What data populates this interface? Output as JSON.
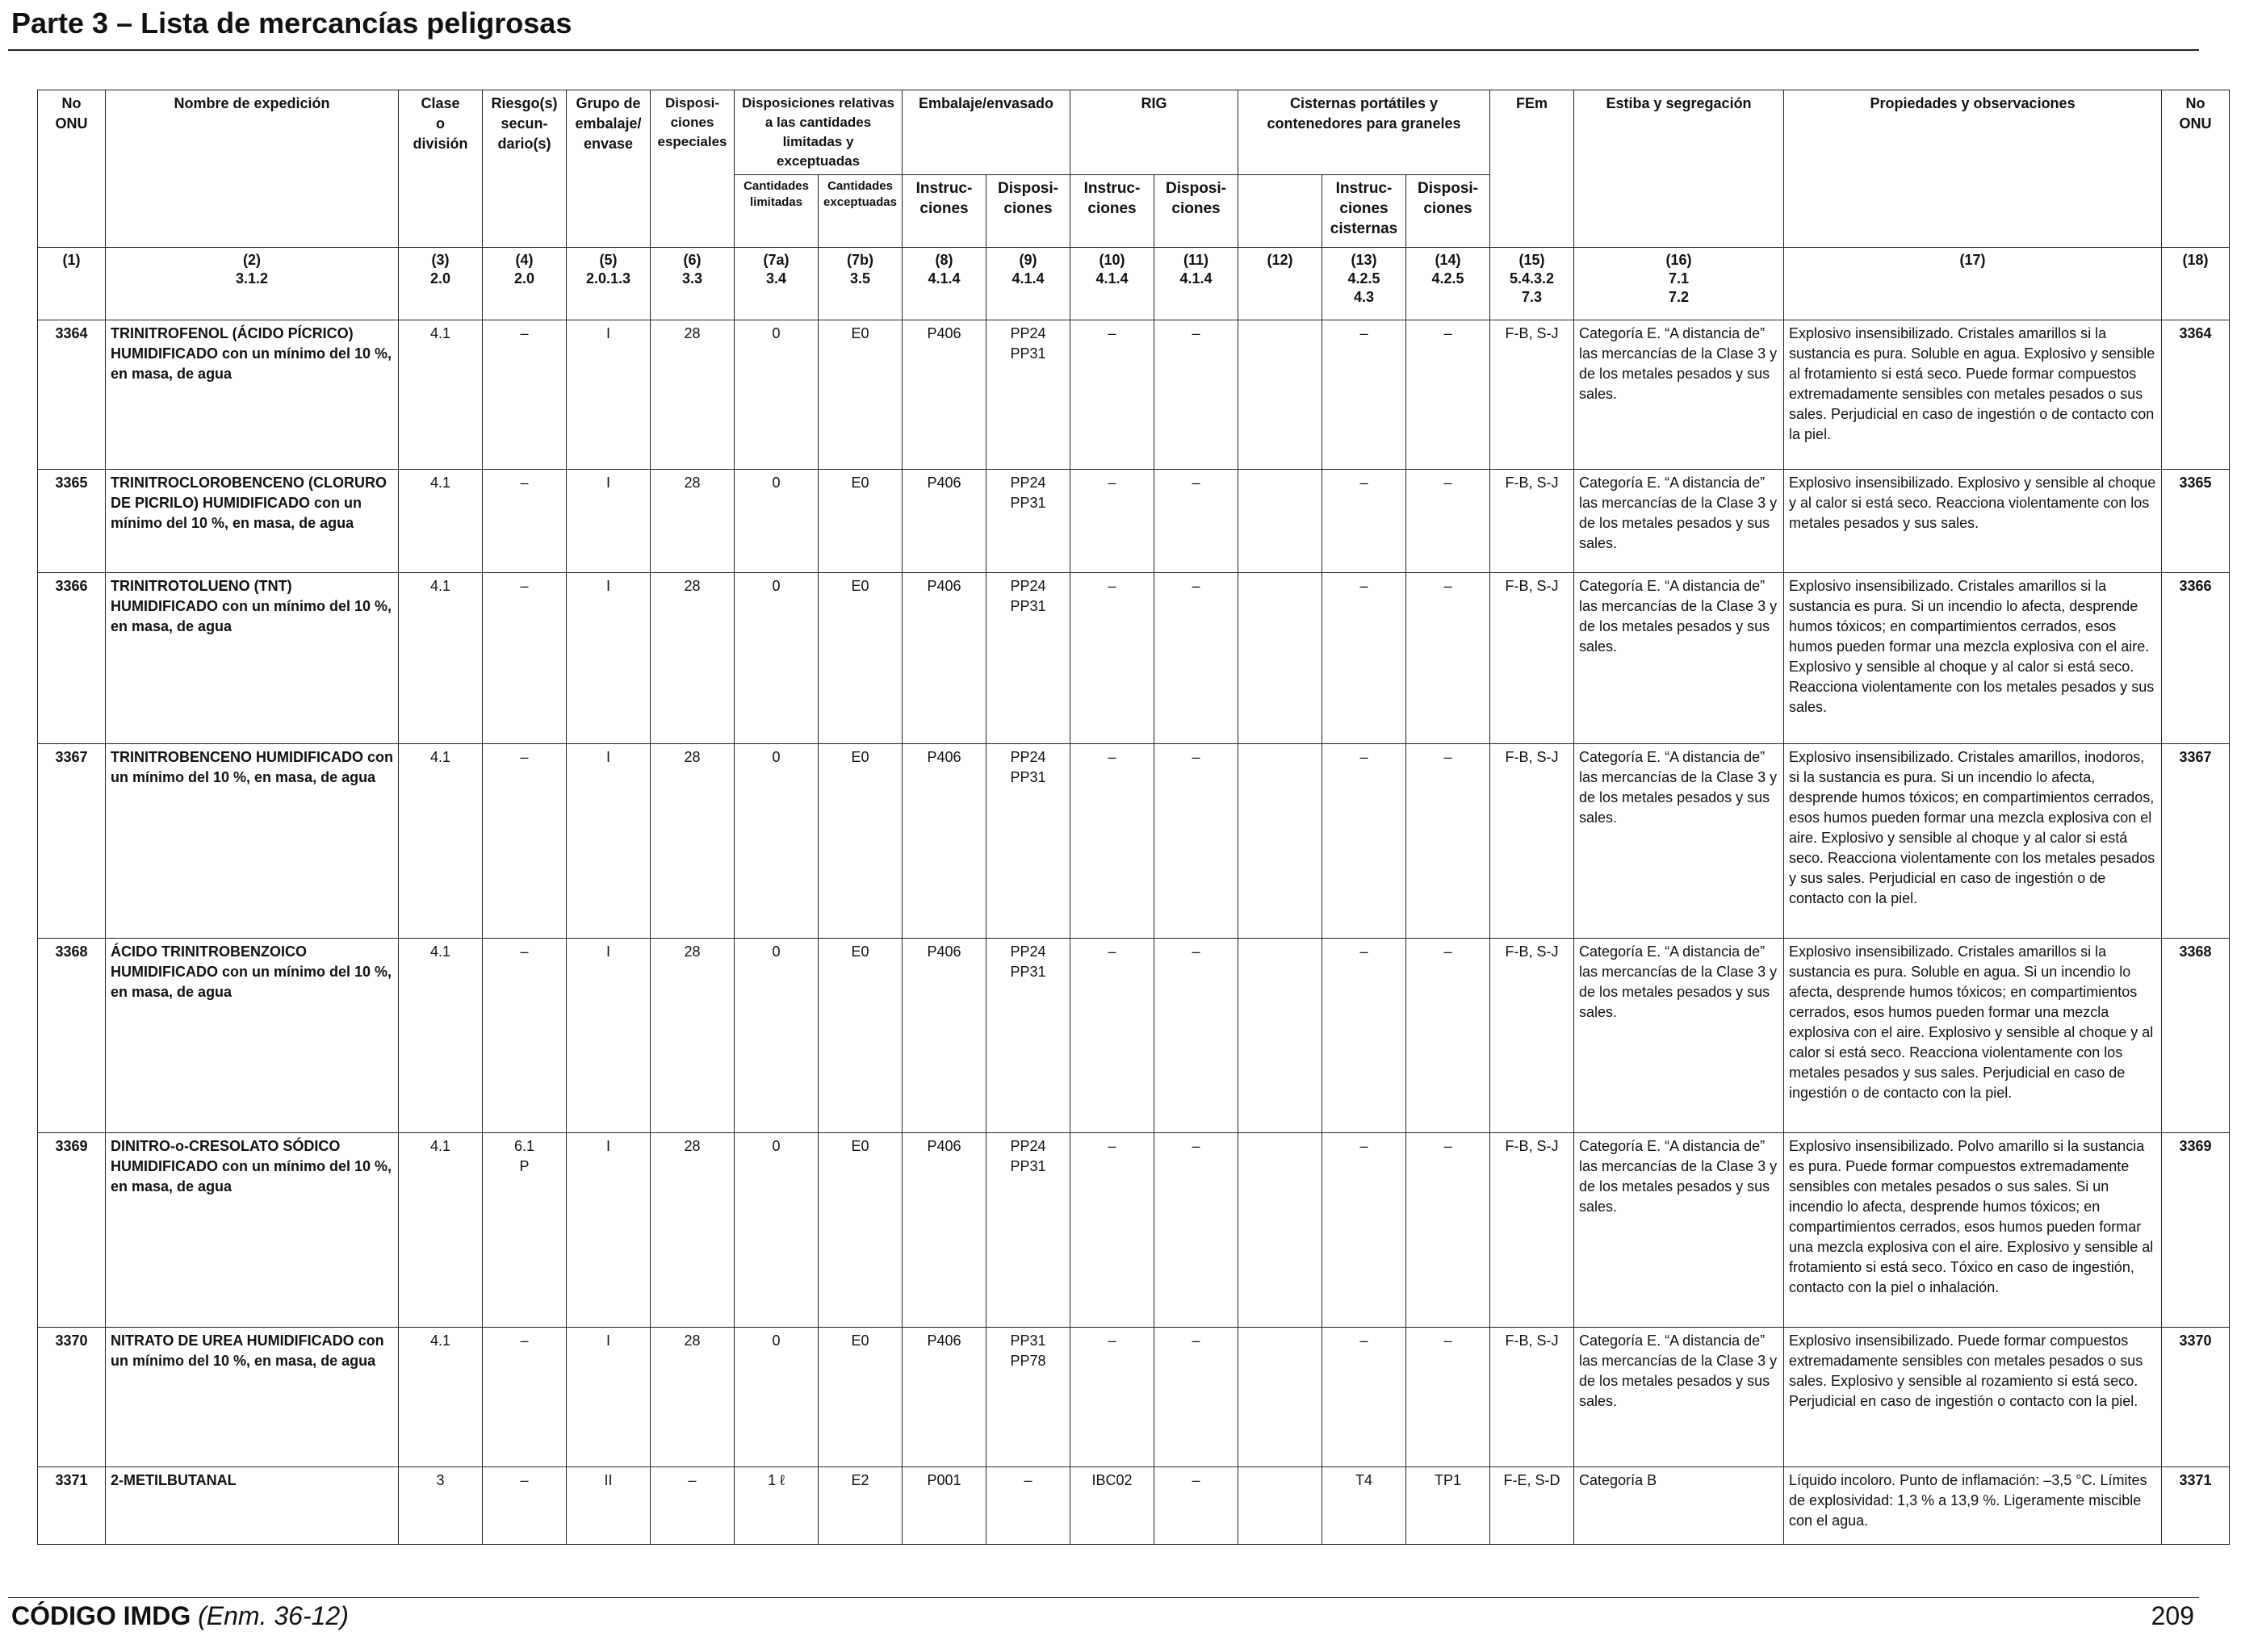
{
  "page": {
    "title": "Parte 3 – Lista de mercancías peligrosas",
    "footer_code": "CÓDIGO IMDG",
    "footer_edition": "(Enm. 36-12)",
    "page_number": "209"
  },
  "headers": {
    "un_no": "No\nONU",
    "shipping_name": "Nombre de expedición",
    "class": "Clase\no\ndivisión",
    "sub_risk": "Riesgo(s)\nsecun-\ndario(s)",
    "packing_group": "Grupo de\nembalaje/\nenvase",
    "special_provisions": "Disposi-\nciones\nespeciales",
    "limited_excepted": "Disposiciones relativas\na las cantidades\nlimitadas y exceptuadas",
    "limited": "Cantidades\nlimitadas",
    "excepted": "Cantidades\nexceptuadas",
    "packaging": "Embalaje/envasado",
    "pkg_instr": "Instruc-\nciones",
    "pkg_prov": "Disposi-\nciones",
    "ibc": "RIG",
    "ibc_instr": "Instruc-\nciones",
    "ibc_prov": "Disposi-\nciones",
    "tanks": "Cisternas portátiles y\ncontenedores para graneles",
    "tank_instr": "Instruc-\nciones\ncisternas",
    "tank_prov": "Disposi-\nciones",
    "ems": "FEm",
    "stowage": "Estiba y segregación",
    "properties": "Propiedades y observaciones",
    "un_no_right": "No\nONU"
  },
  "ref_row": [
    "(1)",
    "(2)\n3.1.2",
    "(3)\n2.0",
    "(4)\n2.0",
    "(5)\n2.0.1.3",
    "(6)\n3.3",
    "(7a)\n3.4",
    "(7b)\n3.5",
    "(8)\n4.1.4",
    "(9)\n4.1.4",
    "(10)\n4.1.4",
    "(11)\n4.1.4",
    "(12)",
    "(13)\n4.2.5\n4.3",
    "(14)\n4.2.5",
    "(15)\n5.4.3.2\n7.3",
    "(16)\n7.1\n7.2",
    "(17)",
    "(18)"
  ],
  "rows": [
    {
      "un": "3364",
      "name_bold": "TRINITROFENOL (ÁCIDO PÍCRICO) HUMIDIFICADO",
      "name_rest": " con un mínimo del 10 %, en masa, de agua",
      "class": "4.1",
      "sub": "–",
      "pg": "I",
      "sp": "28",
      "lq": "0",
      "eq": "E0",
      "pkg": "P406",
      "pkgp": "PP24\nPP31",
      "ibc": "–",
      "ibcp": "–",
      "c12": "",
      "tank": "–",
      "tankp": "–",
      "ems": "F-B, S-J",
      "stow": "Categoría E. “A distancia de” las mercancías de la Clase 3 y de los metales pesados y sus sales.",
      "props": "Explosivo insensibilizado. Cristales amarillos si la sustancia es pura. Soluble en agua. Explosivo y sensible al frotamiento si está seco. Puede formar compuestos extremadamente sensibles con metales pesados o sus sales. Perjudicial en caso de ingestión o de contacto con la piel.",
      "un2": "3364"
    },
    {
      "un": "3365",
      "name_bold": "TRINITROCLOROBENCENO (CLORURO DE PICRILO) HUMIDIFICADO",
      "name_rest": " con un mínimo del 10 %, en masa, de agua",
      "class": "4.1",
      "sub": "–",
      "pg": "I",
      "sp": "28",
      "lq": "0",
      "eq": "E0",
      "pkg": "P406",
      "pkgp": "PP24\nPP31",
      "ibc": "–",
      "ibcp": "–",
      "c12": "",
      "tank": "–",
      "tankp": "–",
      "ems": "F-B, S-J",
      "stow": "Categoría E. “A distancia de” las mercancías de la Clase 3 y de los metales pesados y sus sales.",
      "props": "Explosivo insensibilizado. Explosivo y sensible al choque y al calor si está seco. Reacciona violentamente con los metales pesados y sus sales.",
      "un2": "3365"
    },
    {
      "un": "3366",
      "name_bold": "TRINITROTOLUENO (TNT) HUMIDIFICADO",
      "name_rest": " con un mínimo del 10 %, en masa, de agua",
      "class": "4.1",
      "sub": "–",
      "pg": "I",
      "sp": "28",
      "lq": "0",
      "eq": "E0",
      "pkg": "P406",
      "pkgp": "PP24\nPP31",
      "ibc": "–",
      "ibcp": "–",
      "c12": "",
      "tank": "–",
      "tankp": "–",
      "ems": "F-B, S-J",
      "stow": "Categoría E. “A distancia de” las mercancías de la Clase 3 y de los metales pesados y sus sales.",
      "props": "Explosivo insensibilizado. Cristales amarillos si la sustancia es pura. Si un incendio lo afecta, desprende humos tóxicos; en compartimientos cerrados, esos humos pueden formar una mezcla explosiva con el aire. Explosivo y sensible al choque y al calor si está seco. Reacciona violentamente con los metales pesados y sus sales.",
      "un2": "3366"
    },
    {
      "un": "3367",
      "name_bold": "TRINITROBENCENO HUMIDIFICADO",
      "name_rest": " con un mínimo del 10 %, en masa, de agua",
      "class": "4.1",
      "sub": "–",
      "pg": "I",
      "sp": "28",
      "lq": "0",
      "eq": "E0",
      "pkg": "P406",
      "pkgp": "PP24\nPP31",
      "ibc": "–",
      "ibcp": "–",
      "c12": "",
      "tank": "–",
      "tankp": "–",
      "ems": "F-B, S-J",
      "stow": "Categoría E. “A distancia de” las mercancías de la Clase 3 y de los metales pesados y sus sales.",
      "props": "Explosivo insensibilizado. Cristales amarillos, inodoros, si la sustancia es pura. Si un incendio lo afecta, desprende humos tóxicos; en compartimientos cerrados, esos humos pueden formar una mezcla explosiva con el aire. Explosivo y sensible al choque y al calor si está seco. Reacciona violentamente con los metales pesados y sus sales. Perjudicial en caso de ingestión o de contacto con la piel.",
      "un2": "3367"
    },
    {
      "un": "3368",
      "name_bold": "ÁCIDO TRINITROBENZOICO HUMIDIFICADO",
      "name_rest": " con un mínimo del 10 %, en masa, de agua",
      "class": "4.1",
      "sub": "–",
      "pg": "I",
      "sp": "28",
      "lq": "0",
      "eq": "E0",
      "pkg": "P406",
      "pkgp": "PP24\nPP31",
      "ibc": "–",
      "ibcp": "–",
      "c12": "",
      "tank": "–",
      "tankp": "–",
      "ems": "F-B, S-J",
      "stow": "Categoría E. “A distancia de” las mercancías de la Clase 3 y de los metales pesados y sus sales.",
      "props": "Explosivo insensibilizado. Cristales amarillos si la sustancia es pura. Soluble en agua. Si un incendio lo afecta, desprende humos tóxicos; en compartimientos cerrados, esos humos pueden formar una mezcla explosiva con el aire. Explosivo y sensible al choque y al calor si está seco. Reacciona violentamente con los metales pesados y sus sales. Perjudicial en caso de ingestión o de contacto con la piel.",
      "un2": "3368"
    },
    {
      "un": "3369",
      "name_bold": "DINITRO-o-CRESOLATO SÓDICO HUMIDIFICADO",
      "name_rest": " con un mínimo del 10 %, en masa, de agua",
      "class": "4.1",
      "sub": "6.1\nP",
      "pg": "I",
      "sp": "28",
      "lq": "0",
      "eq": "E0",
      "pkg": "P406",
      "pkgp": "PP24\nPP31",
      "ibc": "–",
      "ibcp": "–",
      "c12": "",
      "tank": "–",
      "tankp": "–",
      "ems": "F-B, S-J",
      "stow": "Categoría E. “A distancia de” las mercancías de la Clase 3 y de los metales pesados y sus sales.",
      "props": "Explosivo insensibilizado. Polvo amarillo si la sustancia es pura. Puede formar compuestos extremadamente sensibles con metales pesados o sus sales. Si un incendio lo afecta, desprende humos tóxicos; en compartimientos cerrados, esos humos pueden formar una mezcla explosiva con el aire. Explosivo y sensible al frotamiento si está seco. Tóxico en caso de ingestión, contacto con la piel o inhalación.",
      "un2": "3369"
    },
    {
      "un": "3370",
      "name_bold": "NITRATO DE UREA HUMIDIFICADO",
      "name_rest": " con un mínimo del 10 %, en masa, de agua",
      "class": "4.1",
      "sub": "–",
      "pg": "I",
      "sp": "28",
      "lq": "0",
      "eq": "E0",
      "pkg": "P406",
      "pkgp": "PP31\nPP78",
      "ibc": "–",
      "ibcp": "–",
      "c12": "",
      "tank": "–",
      "tankp": "–",
      "ems": "F-B, S-J",
      "stow": "Categoría E. “A distancia de” las mercancías de la Clase 3 y de los metales pesados y sus sales.",
      "props": "Explosivo insensibilizado. Puede formar compuestos extremadamente sensibles con metales pesados o sus sales. Explosivo y sensible al rozamiento si está seco. Perjudicial en caso de ingestión o contacto con la piel.",
      "un2": "3370"
    },
    {
      "un": "3371",
      "name_bold": "2-METILBUTANAL",
      "name_rest": "",
      "class": "3",
      "sub": "–",
      "pg": "II",
      "sp": "–",
      "lq": "1 ℓ",
      "eq": "E2",
      "pkg": "P001",
      "pkgp": "–",
      "ibc": "IBC02",
      "ibcp": "–",
      "c12": "",
      "tank": "T4",
      "tankp": "TP1",
      "ems": "F-E, S-D",
      "stow": "Categoría B",
      "props": "Líquido incoloro. Punto de inflamación: –3,5 °C. Límites de explosividad: 1,3 % a 13,9 %. Ligeramente miscible con el agua.",
      "un2": "3371"
    }
  ]
}
